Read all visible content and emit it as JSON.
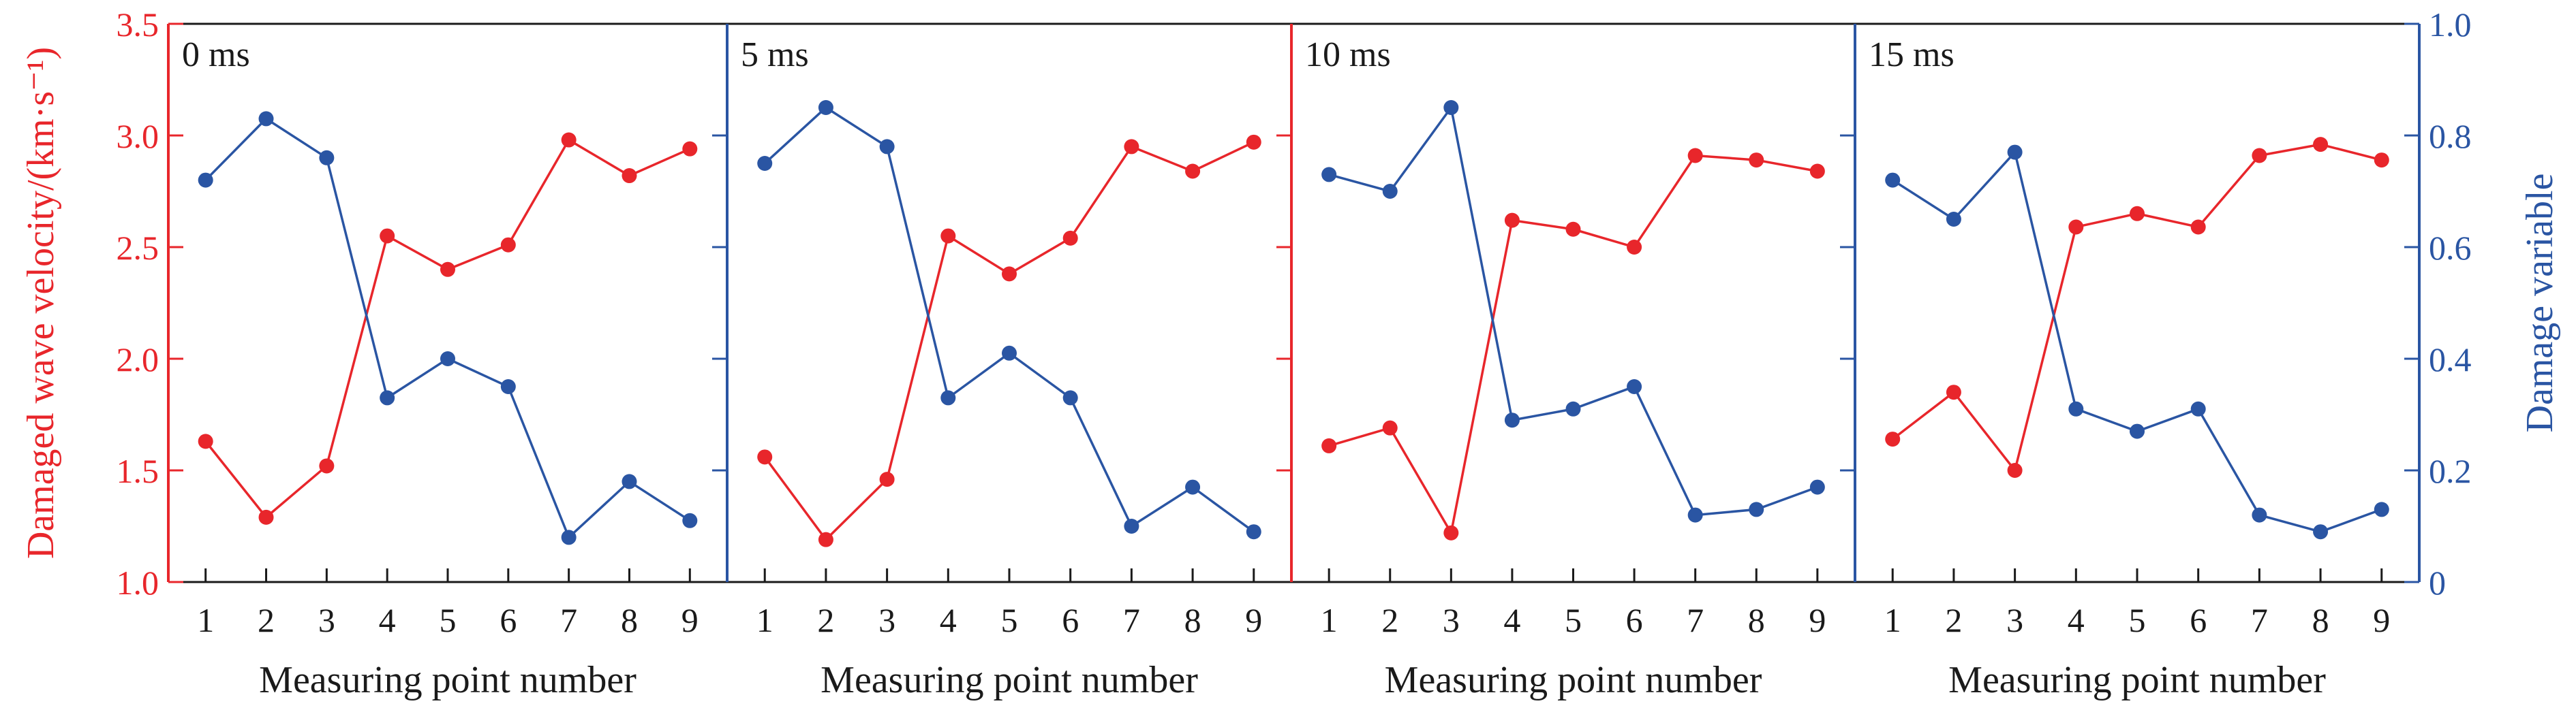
{
  "chart_data": {
    "type": "line",
    "x_categories": [
      "1",
      "2",
      "3",
      "4",
      "5",
      "6",
      "7",
      "8",
      "9"
    ],
    "xlabel": "Measuring point number",
    "left_axis": {
      "label": "Damaged wave velocity/(km·s⁻¹)",
      "ylim": [
        1.0,
        3.5
      ],
      "ticks": [
        1.0,
        1.5,
        2.0,
        2.5,
        3.0,
        3.5
      ],
      "tick_labels": [
        "1.0",
        "1.5",
        "2.0",
        "2.5",
        "3.0",
        "3.5"
      ],
      "color": "#e8262b"
    },
    "right_axis": {
      "label": "Damage variable",
      "ylim": [
        0,
        1.0
      ],
      "ticks": [
        0,
        0.2,
        0.4,
        0.6,
        0.8,
        1.0
      ],
      "tick_labels": [
        "0",
        "0.2",
        "0.4",
        "0.6",
        "0.8",
        "1.0"
      ],
      "color": "#2a55a3"
    },
    "panels": [
      {
        "title": "0 ms",
        "wave_velocity": [
          1.63,
          1.29,
          1.52,
          2.55,
          2.4,
          2.51,
          2.98,
          2.82,
          2.94
        ],
        "damage_variable": [
          0.72,
          0.83,
          0.76,
          0.33,
          0.4,
          0.35,
          0.08,
          0.18,
          0.11
        ]
      },
      {
        "title": "5 ms",
        "wave_velocity": [
          1.56,
          1.19,
          1.46,
          2.55,
          2.38,
          2.54,
          2.95,
          2.84,
          2.97
        ],
        "damage_variable": [
          0.75,
          0.85,
          0.78,
          0.33,
          0.41,
          0.33,
          0.1,
          0.17,
          0.09
        ]
      },
      {
        "title": "10 ms",
        "wave_velocity": [
          1.61,
          1.69,
          1.22,
          2.62,
          2.58,
          2.5,
          2.91,
          2.89,
          2.84
        ],
        "damage_variable": [
          0.73,
          0.7,
          0.85,
          0.29,
          0.31,
          0.35,
          0.12,
          0.13,
          0.17
        ]
      },
      {
        "title": "15 ms",
        "wave_velocity": [
          1.64,
          1.85,
          1.5,
          2.59,
          2.65,
          2.59,
          2.91,
          2.96,
          2.89
        ],
        "damage_variable": [
          0.72,
          0.65,
          0.77,
          0.31,
          0.27,
          0.31,
          0.12,
          0.09,
          0.13
        ]
      }
    ],
    "legend": "none",
    "grid": false
  }
}
